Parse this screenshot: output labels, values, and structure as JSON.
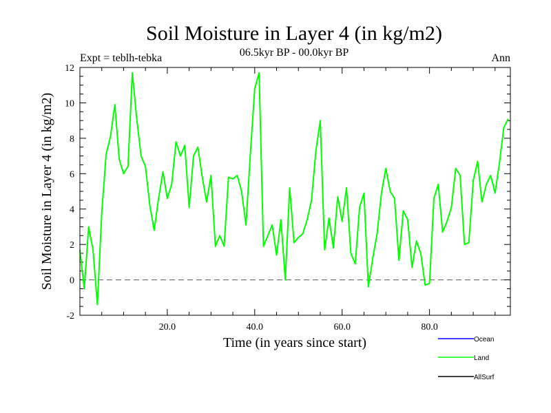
{
  "chart_data": {
    "type": "line",
    "title": "Soil Moisture in Layer 4 (in kg/m2)",
    "subtitle": "06.5kyr BP - 00.0kyr BP",
    "left_label": "Expt = teblh-tebka",
    "right_label": "Ann",
    "xlabel": "Time (in years since start)",
    "ylabel": "Soil Moisture in Layer 4 (in kg/m2)",
    "xlim": [
      0,
      98.5
    ],
    "ylim": [
      -2,
      12
    ],
    "x_ticks": [
      {
        "value": 20,
        "label": "20.0"
      },
      {
        "value": 40,
        "label": "40.0"
      },
      {
        "value": 60,
        "label": "60.0"
      },
      {
        "value": 80,
        "label": "80.0"
      }
    ],
    "y_ticks": [
      {
        "value": -2,
        "label": "-2"
      },
      {
        "value": 0,
        "label": "0"
      },
      {
        "value": 2,
        "label": "2"
      },
      {
        "value": 4,
        "label": "4"
      },
      {
        "value": 6,
        "label": "6"
      },
      {
        "value": 8,
        "label": "8"
      },
      {
        "value": 10,
        "label": "10"
      },
      {
        "value": 12,
        "label": "12"
      }
    ],
    "reference_line": {
      "y": 0,
      "style": "dashed"
    },
    "series": [
      {
        "name": "Land",
        "color": "#00ff00",
        "x_start": 0,
        "x_step": 1,
        "values": [
          1.7,
          -0.5,
          3.0,
          1.7,
          -1.4,
          3.8,
          7.1,
          8.1,
          9.9,
          6.8,
          6.0,
          6.4,
          11.7,
          9.1,
          7.0,
          6.4,
          4.2,
          2.8,
          4.6,
          6.1,
          4.6,
          5.4,
          7.8,
          7.0,
          7.6,
          4.1,
          7.0,
          7.5,
          5.8,
          4.4,
          5.9,
          1.9,
          2.5,
          1.9,
          5.8,
          5.7,
          5.9,
          5.0,
          3.1,
          7.1,
          10.8,
          11.7,
          1.9,
          2.5,
          3.1,
          1.4,
          3.4,
          0.0,
          5.2,
          2.1,
          2.4,
          2.6,
          3.4,
          4.5,
          7.3,
          9.0,
          1.7,
          3.5,
          1.8,
          4.7,
          3.3,
          5.2,
          1.5,
          0.9,
          4.1,
          4.9,
          -0.4,
          1.2,
          2.6,
          4.9,
          6.3,
          5.0,
          4.6,
          1.1,
          3.9,
          3.4,
          0.7,
          2.2,
          1.5,
          -0.3,
          -0.2,
          4.6,
          5.4,
          2.7,
          3.3,
          4.1,
          6.3,
          5.9,
          2.0,
          2.1,
          5.6,
          6.7,
          4.4,
          5.4,
          5.9,
          4.9,
          6.6,
          8.6,
          9.1
        ]
      }
    ],
    "legend": {
      "placement": "bottom-right",
      "entries": [
        {
          "label": "Ocean",
          "color": "#0000ff"
        },
        {
          "label": "Land",
          "color": "#00ff00"
        },
        {
          "label": "AllSurf",
          "color": "#000000"
        }
      ]
    }
  }
}
